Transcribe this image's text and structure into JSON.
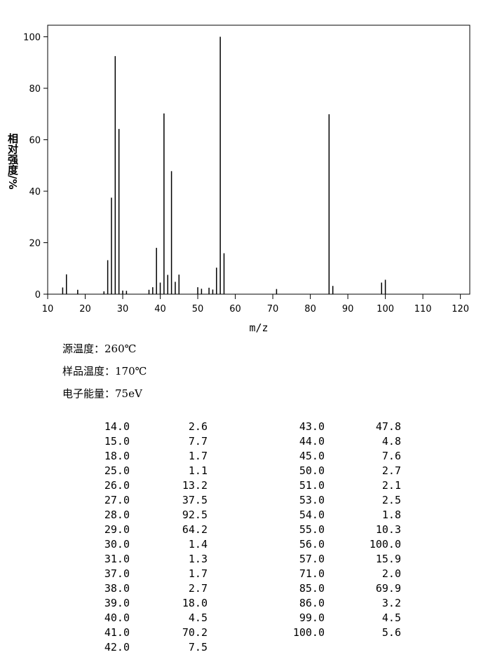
{
  "chart_data": {
    "type": "stem",
    "xlabel": "m/z",
    "ylabel": "相对强度/%",
    "x": [
      14,
      15,
      18,
      25,
      26,
      27,
      28,
      29,
      30,
      31,
      37,
      38,
      39,
      40,
      41,
      42,
      43,
      44,
      45,
      50,
      51,
      53,
      54,
      55,
      56,
      57,
      71,
      85,
      86,
      99,
      100
    ],
    "values": [
      2.6,
      7.7,
      1.7,
      1.1,
      13.2,
      37.5,
      92.5,
      64.2,
      1.4,
      1.3,
      1.7,
      2.7,
      18.0,
      4.5,
      70.2,
      7.5,
      47.8,
      4.8,
      7.6,
      2.7,
      2.1,
      2.5,
      1.8,
      10.3,
      100.0,
      15.9,
      2.0,
      69.9,
      3.2,
      4.5,
      5.6
    ],
    "color": "#000000",
    "xlim": [
      10,
      122.5
    ],
    "xticks": [
      10,
      20,
      30,
      40,
      50,
      60,
      70,
      80,
      90,
      100,
      110,
      120
    ],
    "ylim": [
      0,
      104.5
    ],
    "yticks": [
      0,
      20,
      40,
      60,
      80,
      100
    ]
  },
  "conditions": [
    "源温度：260℃",
    "样品温度：170℃",
    "电子能量：75eV"
  ],
  "table": {
    "columns": [
      [
        [
          "14.0",
          "2.6"
        ],
        [
          "15.0",
          "7.7"
        ],
        [
          "18.0",
          "1.7"
        ],
        [
          "25.0",
          "1.1"
        ],
        [
          "26.0",
          "13.2"
        ],
        [
          "27.0",
          "37.5"
        ],
        [
          "28.0",
          "92.5"
        ],
        [
          "29.0",
          "64.2"
        ],
        [
          "30.0",
          "1.4"
        ],
        [
          "31.0",
          "1.3"
        ],
        [
          "37.0",
          "1.7"
        ],
        [
          "38.0",
          "2.7"
        ],
        [
          "39.0",
          "18.0"
        ],
        [
          "40.0",
          "4.5"
        ],
        [
          "41.0",
          "70.2"
        ],
        [
          "42.0",
          "7.5"
        ]
      ],
      [
        [
          "43.0",
          "47.8"
        ],
        [
          "44.0",
          "4.8"
        ],
        [
          "45.0",
          "7.6"
        ],
        [
          "50.0",
          "2.7"
        ],
        [
          "51.0",
          "2.1"
        ],
        [
          "53.0",
          "2.5"
        ],
        [
          "54.0",
          "1.8"
        ],
        [
          "55.0",
          "10.3"
        ],
        [
          "56.0",
          "100.0"
        ],
        [
          "57.0",
          "15.9"
        ],
        [
          "71.0",
          "2.0"
        ],
        [
          "85.0",
          "69.9"
        ],
        [
          "86.0",
          "3.2"
        ],
        [
          "99.0",
          "4.5"
        ],
        [
          "100.0",
          "5.6"
        ]
      ]
    ]
  }
}
